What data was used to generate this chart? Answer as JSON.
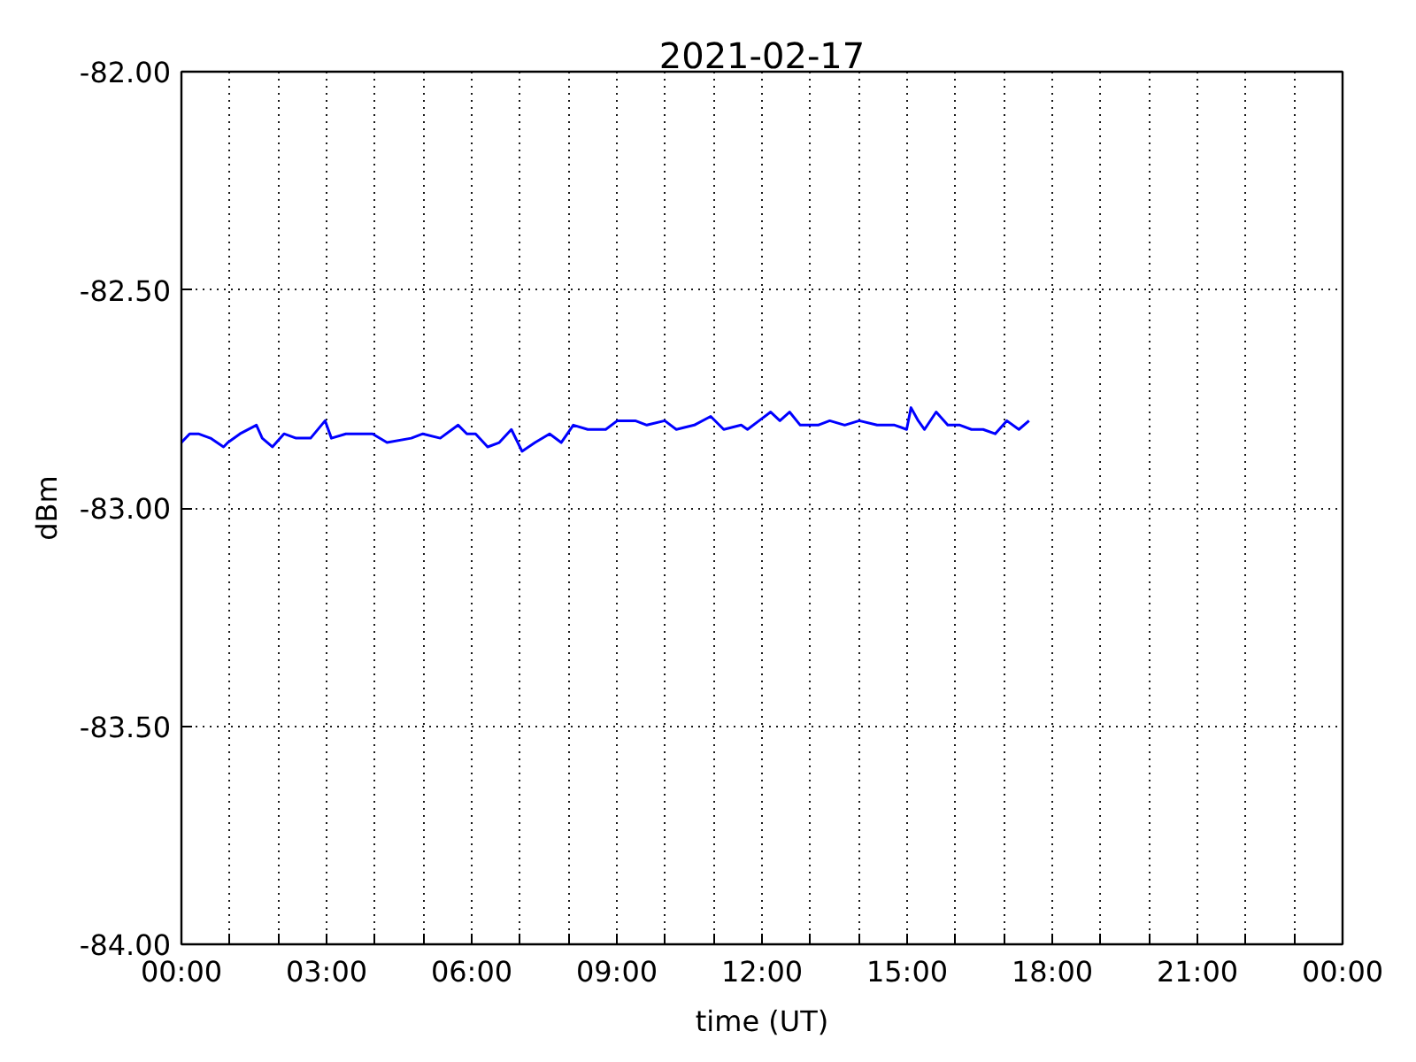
{
  "chart_data": {
    "type": "line",
    "title": "2021-02-17",
    "xlabel": "time (UT)",
    "ylabel": "dBm",
    "x": [
      0.0,
      0.17,
      0.35,
      0.6,
      0.87,
      0.96,
      1.21,
      1.55,
      1.67,
      1.88,
      2.12,
      2.37,
      2.67,
      2.97,
      3.1,
      3.4,
      3.95,
      4.25,
      4.75,
      4.99,
      5.35,
      5.72,
      5.9,
      6.08,
      6.33,
      6.57,
      6.82,
      7.04,
      7.31,
      7.61,
      7.85,
      8.1,
      8.4,
      8.77,
      9.01,
      9.38,
      9.62,
      9.99,
      10.23,
      10.6,
      10.94,
      11.21,
      11.57,
      11.7,
      11.94,
      12.18,
      12.37,
      12.57,
      12.79,
      13.16,
      13.4,
      13.71,
      14.01,
      14.38,
      14.74,
      14.99,
      15.08,
      15.23,
      15.36,
      15.6,
      15.84,
      16.09,
      16.33,
      16.57,
      16.82,
      17.06,
      17.31,
      17.52
    ],
    "series": [
      {
        "color": "#0000ff",
        "values": [
          -82.85,
          -82.83,
          -82.83,
          -82.84,
          -82.86,
          -82.85,
          -82.83,
          -82.81,
          -82.84,
          -82.86,
          -82.83,
          -82.84,
          -82.84,
          -82.8,
          -82.84,
          -82.83,
          -82.83,
          -82.85,
          -82.84,
          -82.83,
          -82.84,
          -82.81,
          -82.83,
          -82.83,
          -82.86,
          -82.85,
          -82.82,
          -82.87,
          -82.85,
          -82.83,
          -82.85,
          -82.81,
          -82.82,
          -82.82,
          -82.8,
          -82.8,
          -82.81,
          -82.8,
          -82.82,
          -82.81,
          -82.79,
          -82.82,
          -82.81,
          -82.82,
          -82.8,
          -82.78,
          -82.8,
          -82.78,
          -82.81,
          -82.81,
          -82.8,
          -82.81,
          -82.8,
          -82.81,
          -82.81,
          -82.82,
          -82.77,
          -82.8,
          -82.82,
          -82.78,
          -82.81,
          -82.81,
          -82.82,
          -82.82,
          -82.83,
          -82.8,
          -82.82,
          -82.8
        ]
      }
    ],
    "xlim": [
      0,
      24
    ],
    "ylim": [
      -84,
      -82
    ],
    "xticks": [
      {
        "value": 0,
        "label": "00:00"
      },
      {
        "value": 1,
        "label": null
      },
      {
        "value": 2,
        "label": null
      },
      {
        "value": 3,
        "label": "03:00"
      },
      {
        "value": 4,
        "label": null
      },
      {
        "value": 5,
        "label": null
      },
      {
        "value": 6,
        "label": "06:00"
      },
      {
        "value": 7,
        "label": null
      },
      {
        "value": 8,
        "label": null
      },
      {
        "value": 9,
        "label": "09:00"
      },
      {
        "value": 10,
        "label": null
      },
      {
        "value": 11,
        "label": null
      },
      {
        "value": 12,
        "label": "12:00"
      },
      {
        "value": 13,
        "label": null
      },
      {
        "value": 14,
        "label": null
      },
      {
        "value": 15,
        "label": "15:00"
      },
      {
        "value": 16,
        "label": null
      },
      {
        "value": 17,
        "label": null
      },
      {
        "value": 18,
        "label": "18:00"
      },
      {
        "value": 19,
        "label": null
      },
      {
        "value": 20,
        "label": null
      },
      {
        "value": 21,
        "label": "21:00"
      },
      {
        "value": 22,
        "label": null
      },
      {
        "value": 23,
        "label": null
      },
      {
        "value": 24,
        "label": "00:00"
      }
    ],
    "yticks": [
      {
        "value": -84,
        "label": "-84.00"
      },
      {
        "value": -83.5,
        "label": "-83.50"
      },
      {
        "value": -83,
        "label": "-83.00"
      },
      {
        "value": -82.5,
        "label": "-82.50"
      },
      {
        "value": -82,
        "label": "-82.00"
      }
    ],
    "grid": true,
    "line_style": "solid"
  }
}
